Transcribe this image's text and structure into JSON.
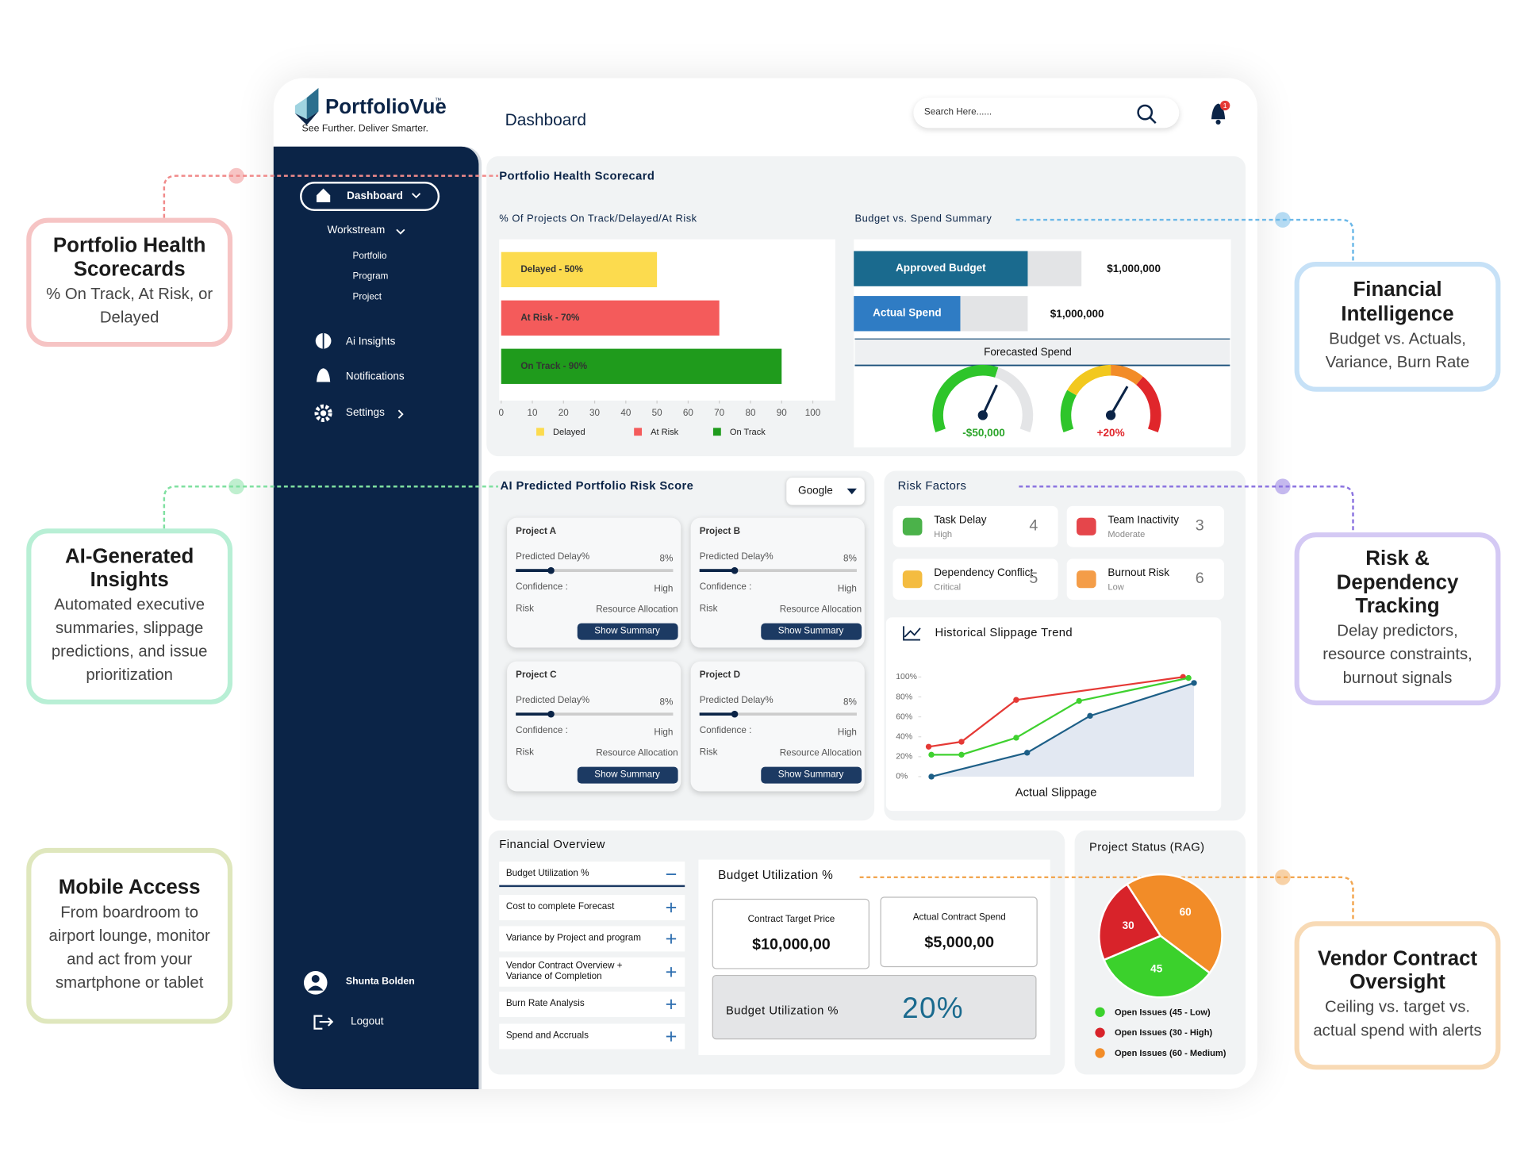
{
  "callouts": [
    {
      "title": "Portfolio Health Scorecards",
      "text": "% On Track, At Risk, or Delayed"
    },
    {
      "title": "AI-Generated Insights",
      "text": "Automated executive summaries, slippage predictions, and issue prioritization"
    },
    {
      "title": "Mobile Access",
      "text": "From boardroom to airport lounge, monitor and act from your smartphone or tablet"
    },
    {
      "title": "Financial Intelligence",
      "text": "Budget vs. Actuals, Variance, Burn Rate"
    },
    {
      "title": "Risk & Dependency Tracking",
      "text": "Delay predictors, resource constraints, burnout signals"
    },
    {
      "title": "Vendor Contract Oversight",
      "text": "Ceiling vs. target vs. actual spend with alerts"
    }
  ],
  "header": {
    "brand": "PortfolioVue",
    "trademark": "™",
    "tagline": "See Further. Deliver Smarter.",
    "page_title": "Dashboard",
    "search_placeholder": "Search Here......",
    "notification_badge": "1"
  },
  "sidebar": {
    "dashboard": "Dashboard",
    "workstream": "Workstream",
    "workstream_items": [
      "Portfolio",
      "Program",
      "Project"
    ],
    "menu": [
      "Ai Insights",
      "Notifications",
      "Settings"
    ],
    "user": "Shunta Bolden",
    "logout": "Logout"
  },
  "scorecard": {
    "title": "Portfolio Health Scorecard",
    "budget": {
      "title": "Budget vs. Spend Summary",
      "rows": [
        {
          "label": "Approved Budget",
          "value": "$1,000,000"
        },
        {
          "label": "Actual Spend",
          "value": "$1,000,000"
        }
      ],
      "forecast_title": "Forecasted Spend",
      "gauges": [
        "-$50,000",
        "+20%"
      ]
    }
  },
  "risk_score": {
    "title": "AI Predicted Portfolio Risk Score",
    "filter": "Google",
    "cards": [
      {
        "project": "Project A",
        "delay_label": "Predicted Delay%",
        "delay": "8%",
        "confidence_label": "Confidence :",
        "confidence": "High",
        "risk_label": "Risk",
        "risk": "Resource Allocation",
        "button": "Show Summary"
      },
      {
        "project": "Project B",
        "delay_label": "Predicted Delay%",
        "delay": "8%",
        "confidence_label": "Confidence :",
        "confidence": "High",
        "risk_label": "Risk",
        "risk": "Resource Allocation",
        "button": "Show Summary"
      },
      {
        "project": "Project C",
        "delay_label": "Predicted Delay%",
        "delay": "8%",
        "confidence_label": "Confidence :",
        "confidence": "High",
        "risk_label": "Risk",
        "risk": "Resource Allocation",
        "button": "Show Summary"
      },
      {
        "project": "Project D",
        "delay_label": "Predicted Delay%",
        "delay": "8%",
        "confidence_label": "Confidence :",
        "confidence": "High",
        "risk_label": "Risk",
        "risk": "Resource Allocation",
        "button": "Show Summary"
      }
    ]
  },
  "risk_factors": {
    "title": "Risk Factors",
    "items": [
      {
        "name": "Task Delay",
        "level": "High",
        "count": 4
      },
      {
        "name": "Team Inactivity",
        "level": "Moderate",
        "count": 3
      },
      {
        "name": "Dependency Conflict",
        "level": "Critical",
        "count": 5
      },
      {
        "name": "Burnout Risk",
        "level": "Low",
        "count": 6
      }
    ]
  },
  "financial": {
    "title": "Financial Overview",
    "accordion": [
      "Budget Utilization %",
      "Cost to complete Forecast",
      "Variance by Project and program",
      "Vendor Contract Overview + Variance of Completion",
      "Burn Rate Analysis",
      "Spend and Accruals"
    ],
    "detail": {
      "title": "Budget Utilization %",
      "boxes": [
        {
          "label": "Contract Target Price",
          "value": "$10,000,00"
        },
        {
          "label": "Actual Contract Spend",
          "value": "$5,000,00"
        }
      ],
      "utilization_label": "Budget Utilization %",
      "utilization": "20%"
    }
  },
  "chart_data": [
    {
      "type": "bar",
      "orientation": "horizontal",
      "title": "% Of Projects On Track/Delayed/At Risk",
      "categories": [
        "Delayed",
        "At Risk",
        "On Track"
      ],
      "values": [
        50,
        70,
        90
      ],
      "value_labels": [
        "Delayed - 50%",
        "At Risk - 70%",
        "On Track - 90%"
      ],
      "colors": [
        "#fcdb4e",
        "#f45b5b",
        "#1f9b1c"
      ],
      "xlim": [
        0,
        100
      ],
      "xticks": [
        0,
        10,
        20,
        30,
        40,
        50,
        60,
        70,
        80,
        90,
        100
      ],
      "legend": "bottom"
    },
    {
      "type": "line",
      "title": "Historical Slippage Trend",
      "x_label": "Actual Slippage",
      "xlim": [
        0,
        100
      ],
      "ylim": [
        0,
        100
      ],
      "yticks": [
        {
          "value": 0,
          "label": "0%"
        },
        {
          "value": 20,
          "label": "20%"
        },
        {
          "value": 40,
          "label": "40%"
        },
        {
          "value": 60,
          "label": "60%"
        },
        {
          "value": 80,
          "label": "80%"
        },
        {
          "value": 100,
          "label": "100%"
        }
      ],
      "series": [
        {
          "color": "#e53935",
          "x": [
            2,
            14,
            34,
            95
          ],
          "values": [
            30,
            35,
            77,
            100
          ]
        },
        {
          "color": "#3fd12f",
          "x": [
            3,
            14,
            34,
            57,
            97
          ],
          "values": [
            22,
            22,
            39,
            76,
            99
          ]
        },
        {
          "color": "#1d5f87",
          "fill": "#dfe6f1",
          "x": [
            3,
            38,
            61,
            99
          ],
          "values": [
            0,
            24,
            61,
            94
          ]
        }
      ]
    },
    {
      "type": "pie",
      "title": "Project Status (RAG)",
      "categories": [
        "Open Issues (45 - Low)",
        "Open Issues (30 - High)",
        "Open Issues (60 - Medium)"
      ],
      "values": [
        45,
        30,
        60
      ],
      "colors": [
        "#3bd12c",
        "#d8232a",
        "#f28c28"
      ]
    }
  ]
}
